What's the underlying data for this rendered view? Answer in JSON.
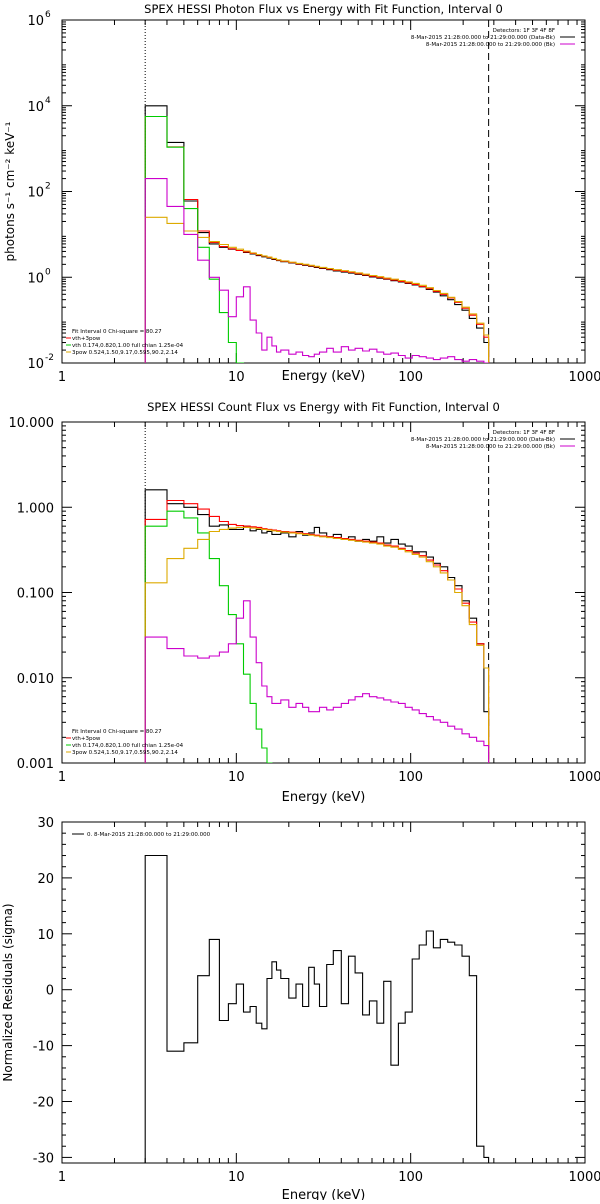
{
  "chart_data": [
    {
      "type": "line",
      "title": "SPEX HESSI Photon Flux vs Energy with Fit Function, Interval 0",
      "xlabel": "Energy (keV)",
      "ylabel": "photons s⁻¹ cm⁻² keV⁻¹",
      "xscale": "log",
      "yscale": "log",
      "xlim": [
        1,
        1000
      ],
      "ylim": [
        0.01,
        1000000
      ],
      "x_ticks": [
        "1",
        "10",
        "100",
        "1000"
      ],
      "y_ticks": [
        {
          "base": "10",
          "exp": "-2",
          "value": 0.01
        },
        {
          "base": "10",
          "exp": "0",
          "value": 1
        },
        {
          "base": "10",
          "exp": "2",
          "value": 100
        },
        {
          "base": "10",
          "exp": "4",
          "value": 10000
        },
        {
          "base": "10",
          "exp": "6",
          "value": 1000000
        }
      ],
      "vlines": [
        3,
        280
      ],
      "grid": false,
      "legend_topright": [
        {
          "text": "Detectors: 1F 3F 4F 8F",
          "color": "#000000"
        },
        {
          "text": "8-Mar-2015 21:28:00.000 to 21:29:00.000 (Data-Bk)",
          "color": "#000000"
        },
        {
          "text": "8-Mar-2015 21:28:00.000 to 21:29:00.000 (Bk)",
          "color": "#cc00cc"
        }
      ],
      "legend_bottomleft": [
        {
          "text": "Fit Interval 0   Chi-square = 80.27",
          "color": "#000000"
        },
        {
          "text": "vth+3pow",
          "color": "#ff0000"
        },
        {
          "text": "vth 0.174,0.820,1.00  full chian 1.25e-04",
          "color": "#00cc00"
        },
        {
          "text": "3pow 0.524,1.50,9.17,0.595,90.2,2.14",
          "color": "#ddaa00"
        }
      ],
      "edges": [
        3,
        4,
        5,
        6,
        7,
        8,
        9,
        10,
        11,
        12,
        13,
        14,
        15,
        16,
        17,
        18,
        20,
        22,
        24,
        26,
        28,
        30,
        33,
        36,
        40,
        44,
        48,
        53,
        58,
        64,
        70,
        77,
        85,
        93,
        102,
        112,
        123,
        135,
        148,
        163,
        179,
        197,
        217,
        239,
        263,
        280
      ],
      "series": [
        {
          "name": "Data-Bk",
          "color": "#000000",
          "values": [
            10000,
            1400,
            60,
            11,
            6,
            5,
            4.5,
            4.2,
            3.8,
            3.5,
            3.2,
            3.0,
            2.8,
            2.6,
            2.45,
            2.3,
            2.15,
            2.0,
            1.9,
            1.8,
            1.7,
            1.6,
            1.5,
            1.4,
            1.32,
            1.25,
            1.17,
            1.1,
            1.02,
            0.95,
            0.9,
            0.83,
            0.78,
            0.72,
            0.66,
            0.6,
            0.52,
            0.45,
            0.37,
            0.3,
            0.23,
            0.17,
            0.11,
            0.065,
            0.03
          ]
        },
        {
          "name": "vth+3pow",
          "color": "#ff0000",
          "values": [
            5600,
            1100,
            65,
            12,
            6.5,
            5.2,
            4.6,
            4.2,
            3.9,
            3.6,
            3.3,
            3.1,
            2.9,
            2.7,
            2.5,
            2.35,
            2.2,
            2.05,
            1.95,
            1.85,
            1.75,
            1.65,
            1.55,
            1.45,
            1.37,
            1.29,
            1.21,
            1.13,
            1.05,
            0.98,
            0.92,
            0.86,
            0.8,
            0.74,
            0.68,
            0.61,
            0.54,
            0.47,
            0.4,
            0.33,
            0.26,
            0.19,
            0.13,
            0.08,
            0.04
          ]
        },
        {
          "name": "vth",
          "color": "#00cc00",
          "values": [
            5600,
            1080,
            40,
            5,
            0.9,
            0.15,
            0.03,
            0.007
          ]
        },
        {
          "name": "3pow",
          "color": "#ddaa00",
          "values": [
            25,
            18,
            12,
            8.5,
            6.8,
            5.8,
            5.0,
            4.5,
            4.1,
            3.7,
            3.4,
            3.15,
            2.95,
            2.75,
            2.55,
            2.4,
            2.25,
            2.1,
            2.0,
            1.9,
            1.8,
            1.7,
            1.6,
            1.5,
            1.42,
            1.34,
            1.26,
            1.18,
            1.1,
            1.03,
            0.96,
            0.9,
            0.84,
            0.78,
            0.72,
            0.65,
            0.57,
            0.49,
            0.42,
            0.34,
            0.27,
            0.2,
            0.14,
            0.085,
            0.045
          ]
        },
        {
          "name": "Bk",
          "color": "#cc00cc",
          "values": [
            200,
            45,
            10,
            2.5,
            1.0,
            0.5,
            0.12,
            0.35,
            0.6,
            0.1,
            0.05,
            0.02,
            0.04,
            0.025,
            0.018,
            0.02,
            0.016,
            0.018,
            0.015,
            0.014,
            0.016,
            0.018,
            0.022,
            0.018,
            0.024,
            0.02,
            0.022,
            0.019,
            0.021,
            0.018,
            0.016,
            0.017,
            0.015,
            0.013,
            0.015,
            0.014,
            0.013,
            0.012,
            0.013,
            0.014,
            0.012,
            0.011,
            0.012,
            0.011,
            0.01
          ]
        }
      ]
    },
    {
      "type": "line",
      "title": "SPEX HESSI Count Flux vs Energy with Fit Function, Interval 0",
      "xlabel": "Energy (keV)",
      "ylabel": "",
      "xscale": "log",
      "yscale": "log",
      "xlim": [
        1,
        1000
      ],
      "ylim": [
        0.001,
        10
      ],
      "x_ticks": [
        "1",
        "10",
        "100",
        "1000"
      ],
      "y_ticks": [
        {
          "label": "10.000",
          "value": 10
        },
        {
          "label": "1.000",
          "value": 1
        },
        {
          "label": "0.100",
          "value": 0.1
        },
        {
          "label": "0.010",
          "value": 0.01
        },
        {
          "label": "0.001",
          "value": 0.001
        }
      ],
      "vlines": [
        3,
        280
      ],
      "grid": false,
      "legend_topright": [
        {
          "text": "Detectors: 1F 3F 4F 8F",
          "color": "#000000"
        },
        {
          "text": "8-Mar-2015 21:28:00.000 to 21:29:00.000 (Data-Bk)",
          "color": "#000000"
        },
        {
          "text": "8-Mar-2015 21:28:00.000 to 21:29:00.000 (Bk)",
          "color": "#cc00cc"
        }
      ],
      "legend_bottomleft": [
        {
          "text": "Fit Interval 0   Chi-square = 80.27",
          "color": "#000000"
        },
        {
          "text": "vth+3pow",
          "color": "#ff0000"
        },
        {
          "text": "vth 0.174,0.820,1.00  full chian 1.25e-04",
          "color": "#00cc00"
        },
        {
          "text": "3pow 0.524,1.50,9.17,0.595,90.2,2.14",
          "color": "#ddaa00"
        }
      ],
      "edges": [
        3,
        4,
        5,
        6,
        7,
        8,
        9,
        10,
        11,
        12,
        13,
        14,
        15,
        16,
        17,
        18,
        20,
        22,
        24,
        26,
        28,
        30,
        33,
        36,
        40,
        44,
        48,
        53,
        58,
        64,
        70,
        77,
        85,
        93,
        102,
        112,
        123,
        135,
        148,
        163,
        179,
        197,
        217,
        239,
        263,
        280
      ],
      "series": [
        {
          "name": "Data-Bk",
          "color": "#000000",
          "values": [
            1.6,
            1.1,
            1.0,
            0.82,
            0.6,
            0.62,
            0.55,
            0.55,
            0.6,
            0.53,
            0.55,
            0.5,
            0.52,
            0.48,
            0.48,
            0.5,
            0.45,
            0.52,
            0.47,
            0.5,
            0.58,
            0.5,
            0.45,
            0.48,
            0.42,
            0.45,
            0.4,
            0.42,
            0.4,
            0.45,
            0.38,
            0.42,
            0.37,
            0.35,
            0.3,
            0.3,
            0.26,
            0.22,
            0.2,
            0.15,
            0.12,
            0.08,
            0.05,
            0.025,
            0.004
          ]
        },
        {
          "name": "vth+3pow",
          "color": "#ff0000",
          "values": [
            0.72,
            1.2,
            1.1,
            0.95,
            0.78,
            0.68,
            0.63,
            0.61,
            0.6,
            0.59,
            0.58,
            0.56,
            0.55,
            0.54,
            0.53,
            0.52,
            0.51,
            0.5,
            0.49,
            0.48,
            0.47,
            0.46,
            0.45,
            0.44,
            0.43,
            0.42,
            0.41,
            0.4,
            0.39,
            0.38,
            0.36,
            0.35,
            0.33,
            0.31,
            0.29,
            0.27,
            0.24,
            0.21,
            0.18,
            0.14,
            0.11,
            0.075,
            0.045,
            0.025,
            0.013
          ]
        },
        {
          "name": "vth",
          "color": "#00cc00",
          "values": [
            0.6,
            0.9,
            0.75,
            0.5,
            0.25,
            0.12,
            0.055,
            0.025,
            0.011,
            0.005,
            0.0025,
            0.0015,
            0.001
          ]
        },
        {
          "name": "3pow",
          "color": "#ddaa00",
          "values": [
            0.13,
            0.25,
            0.33,
            0.42,
            0.52,
            0.55,
            0.57,
            0.58,
            0.58,
            0.57,
            0.56,
            0.55,
            0.54,
            0.53,
            0.52,
            0.51,
            0.5,
            0.49,
            0.48,
            0.47,
            0.46,
            0.45,
            0.44,
            0.43,
            0.42,
            0.41,
            0.4,
            0.39,
            0.38,
            0.37,
            0.35,
            0.34,
            0.32,
            0.3,
            0.28,
            0.26,
            0.23,
            0.2,
            0.17,
            0.14,
            0.1,
            0.07,
            0.042,
            0.024,
            0.013
          ]
        },
        {
          "name": "Bk",
          "color": "#cc00cc",
          "values": [
            0.03,
            0.022,
            0.018,
            0.017,
            0.018,
            0.02,
            0.025,
            0.05,
            0.08,
            0.03,
            0.015,
            0.008,
            0.006,
            0.005,
            0.005,
            0.0055,
            0.0045,
            0.005,
            0.0045,
            0.004,
            0.004,
            0.0045,
            0.0042,
            0.0045,
            0.005,
            0.0055,
            0.006,
            0.0065,
            0.006,
            0.0058,
            0.0055,
            0.0052,
            0.005,
            0.0045,
            0.0042,
            0.0038,
            0.0035,
            0.0032,
            0.003,
            0.0027,
            0.0025,
            0.0022,
            0.002,
            0.0018,
            0.0016
          ]
        }
      ]
    },
    {
      "type": "line",
      "title": "",
      "xlabel": "Energy (keV)",
      "ylabel": "Normalized Residuals (sigma)",
      "xscale": "log",
      "yscale": "linear",
      "xlim": [
        1,
        1000
      ],
      "ylim": [
        -31,
        30
      ],
      "x_ticks": [
        "1",
        "10",
        "100",
        "1000"
      ],
      "y_ticks": [
        "30",
        "20",
        "10",
        "0",
        "-10",
        "-20",
        "-30"
      ],
      "vlines": [],
      "grid": false,
      "legend_topleft": [
        {
          "text": "0.  8-Mar-2015 21:28:00.000 to 21:29:00.000",
          "color": "#000000"
        }
      ],
      "edges": [
        3,
        4,
        5,
        6,
        7,
        8,
        9,
        10,
        11,
        12,
        13,
        14,
        15,
        16,
        17,
        18,
        20,
        22,
        24,
        26,
        28,
        30,
        33,
        36,
        40,
        44,
        48,
        53,
        58,
        64,
        70,
        77,
        85,
        93,
        102,
        112,
        123,
        135,
        148,
        163,
        179,
        197,
        217,
        239,
        263,
        280
      ],
      "series": [
        {
          "name": "",
          "color": "#000000",
          "values": [
            24,
            -11,
            -9.5,
            2.5,
            9,
            -5.5,
            -2.5,
            1,
            -4,
            -3,
            -6,
            -7,
            2,
            5,
            3.5,
            2,
            -1.5,
            1,
            -3,
            4,
            1,
            -3,
            4.5,
            7,
            -2.5,
            6,
            3,
            -4.5,
            -2,
            -6,
            1.5,
            -13.5,
            -6,
            -4,
            5.5,
            8,
            10.5,
            7.5,
            9,
            8.5,
            8,
            6,
            2.5,
            -28,
            -30
          ]
        }
      ]
    }
  ]
}
